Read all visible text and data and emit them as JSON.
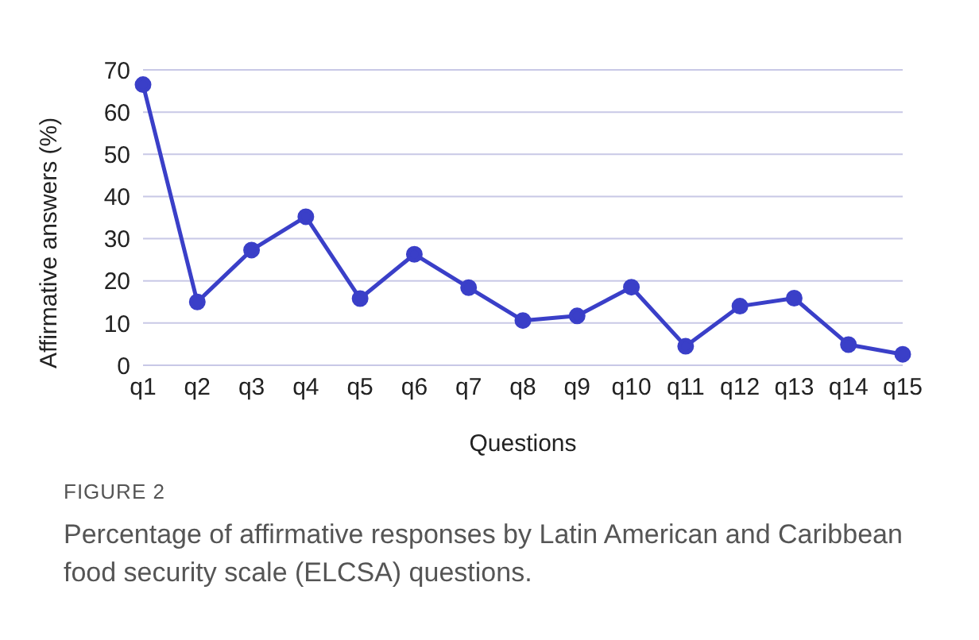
{
  "chart_data": {
    "type": "line",
    "xlabel": "Questions",
    "ylabel": "Affirmative answers (%)",
    "categories": [
      "q1",
      "q2",
      "q3",
      "q4",
      "q5",
      "q6",
      "q7",
      "q8",
      "q9",
      "q10",
      "q11",
      "q12",
      "q13",
      "q14",
      "q15"
    ],
    "series": [
      {
        "color": "#3a3fc8",
        "values": [
          66.5,
          15,
          27.3,
          35.2,
          15.8,
          26.3,
          18.4,
          10.6,
          11.7,
          18.5,
          4.5,
          14,
          15.9,
          4.9,
          2.6
        ]
      }
    ],
    "ylim": [
      0,
      70
    ],
    "yticks": [
      0,
      10,
      20,
      30,
      40,
      50,
      60,
      70
    ],
    "grid": "y",
    "marker": "circle",
    "line_style": "solid",
    "legend": false,
    "annotations": [
      "FIGURE 2",
      "Percentage of affirmative responses by Latin American and Caribbean food security scale (ELCSA) questions."
    ]
  }
}
